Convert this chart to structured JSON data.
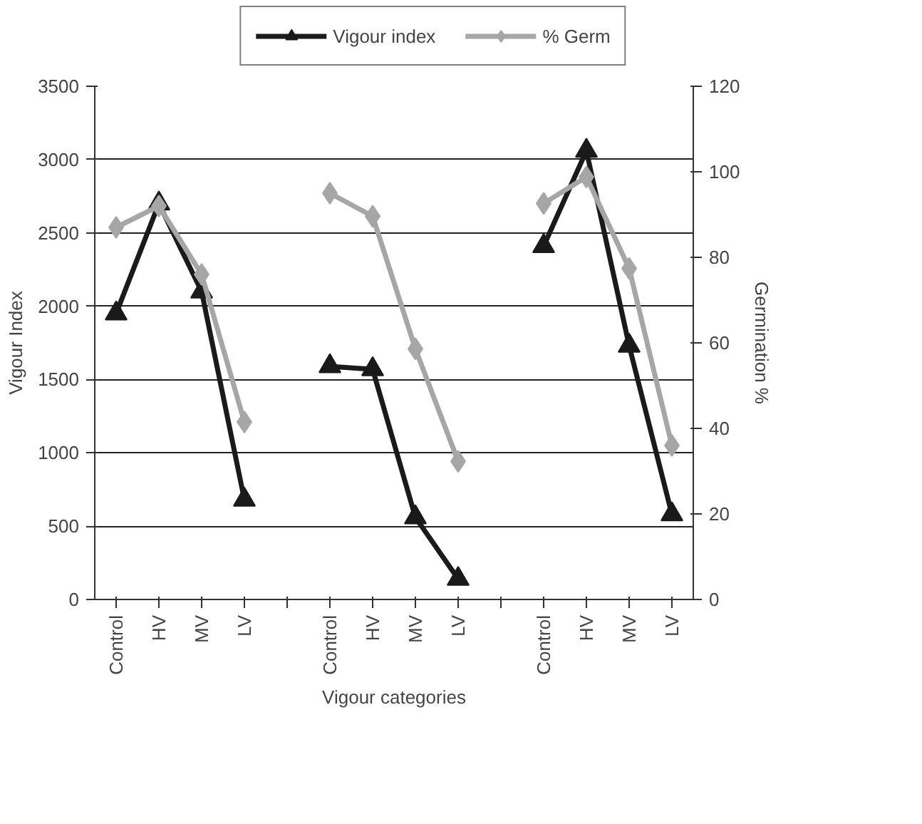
{
  "chart_data": {
    "type": "line",
    "xlabel": "Vigour categories",
    "ylabel": "Vigour Index",
    "y2label": "Germination %",
    "categories": [
      "Control",
      "HV",
      "MV",
      "LV",
      null,
      "Control",
      "HV",
      "MV",
      "LV",
      null,
      "Control",
      "HV",
      "MV",
      "LV"
    ],
    "series": [
      {
        "name": "Vigour index",
        "color": "#1a1a1a",
        "marker": "triangle",
        "values": [
          1950,
          2700,
          2100,
          680,
          null,
          1590,
          1570,
          560,
          140,
          null,
          2410,
          3060,
          1730,
          580
        ]
      },
      {
        "name": "% Germ",
        "color": "#a6a6a6",
        "marker": "diamond",
        "axis": "y2",
        "values": [
          87,
          92,
          76,
          41.5,
          null,
          95,
          89.6,
          58.6,
          32.3,
          null,
          92.6,
          98.8,
          77.4,
          36
        ]
      }
    ],
    "ylim": [
      0,
      3500
    ],
    "yticks": [
      0,
      500,
      1000,
      1500,
      2000,
      2500,
      3000,
      3500
    ],
    "y2lim": [
      0,
      120
    ],
    "y2ticks": [
      0,
      20,
      40,
      60,
      80,
      100,
      120
    ],
    "grid": "y",
    "legend": "top",
    "line_style": "solid"
  }
}
